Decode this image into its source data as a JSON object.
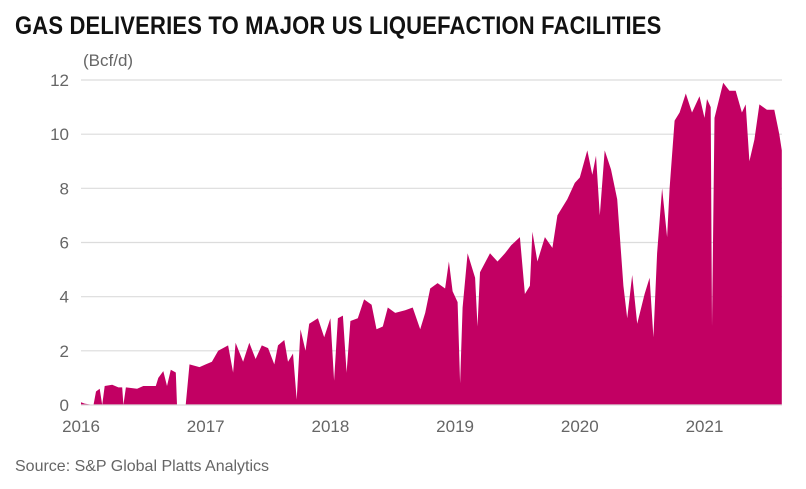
{
  "chart_data": {
    "type": "area",
    "title": "GAS DELIVERIES TO MAJOR US LIQUEFACTION FACILITIES",
    "ylabel": "(Bcf/d)",
    "xlabel": "",
    "source": "Source: S&P Global Platts Analytics",
    "ylim": [
      0,
      12
    ],
    "xlim": [
      2016.0,
      2021.62
    ],
    "yticks": [
      "0",
      "2",
      "4",
      "6",
      "8",
      "10",
      "12"
    ],
    "xticks": [
      "2016",
      "2017",
      "2018",
      "2019",
      "2020",
      "2021"
    ],
    "grid": true,
    "color": "#c20063",
    "series": [
      {
        "name": "Gas deliveries",
        "points": [
          [
            2016.0,
            0.1
          ],
          [
            2016.03,
            0.05
          ],
          [
            2016.1,
            0
          ],
          [
            2016.12,
            0.5
          ],
          [
            2016.15,
            0.6
          ],
          [
            2016.17,
            0
          ],
          [
            2016.19,
            0.7
          ],
          [
            2016.25,
            0.75
          ],
          [
            2016.3,
            0.65
          ],
          [
            2016.33,
            0.65
          ],
          [
            2016.34,
            0
          ],
          [
            2016.36,
            0.65
          ],
          [
            2016.45,
            0.6
          ],
          [
            2016.5,
            0.7
          ],
          [
            2016.6,
            0.7
          ],
          [
            2016.62,
            1.0
          ],
          [
            2016.66,
            1.25
          ],
          [
            2016.69,
            0.7
          ],
          [
            2016.72,
            1.3
          ],
          [
            2016.76,
            1.2
          ],
          [
            2016.77,
            0
          ],
          [
            2016.84,
            0
          ],
          [
            2016.87,
            1.5
          ],
          [
            2016.95,
            1.4
          ],
          [
            2017.0,
            1.5
          ],
          [
            2017.05,
            1.6
          ],
          [
            2017.1,
            2.0
          ],
          [
            2017.18,
            2.2
          ],
          [
            2017.22,
            1.2
          ],
          [
            2017.24,
            2.3
          ],
          [
            2017.3,
            1.6
          ],
          [
            2017.35,
            2.3
          ],
          [
            2017.4,
            1.7
          ],
          [
            2017.45,
            2.2
          ],
          [
            2017.5,
            2.1
          ],
          [
            2017.55,
            1.5
          ],
          [
            2017.58,
            2.2
          ],
          [
            2017.63,
            2.4
          ],
          [
            2017.66,
            1.6
          ],
          [
            2017.7,
            1.9
          ],
          [
            2017.73,
            0.2
          ],
          [
            2017.76,
            2.8
          ],
          [
            2017.8,
            2.0
          ],
          [
            2017.83,
            3.0
          ],
          [
            2017.9,
            3.2
          ],
          [
            2017.95,
            2.5
          ],
          [
            2018.0,
            3.2
          ],
          [
            2018.03,
            0.9
          ],
          [
            2018.06,
            3.2
          ],
          [
            2018.1,
            3.3
          ],
          [
            2018.13,
            1.2
          ],
          [
            2018.16,
            3.1
          ],
          [
            2018.22,
            3.2
          ],
          [
            2018.27,
            3.9
          ],
          [
            2018.33,
            3.7
          ],
          [
            2018.37,
            2.8
          ],
          [
            2018.42,
            2.9
          ],
          [
            2018.46,
            3.6
          ],
          [
            2018.52,
            3.4
          ],
          [
            2018.6,
            3.5
          ],
          [
            2018.66,
            3.6
          ],
          [
            2018.72,
            2.8
          ],
          [
            2018.76,
            3.4
          ],
          [
            2018.8,
            4.3
          ],
          [
            2018.86,
            4.5
          ],
          [
            2018.92,
            4.3
          ],
          [
            2018.95,
            5.3
          ],
          [
            2018.98,
            4.2
          ],
          [
            2019.02,
            3.8
          ],
          [
            2019.04,
            0.8
          ],
          [
            2019.06,
            3.6
          ],
          [
            2019.1,
            5.6
          ],
          [
            2019.16,
            4.7
          ],
          [
            2019.18,
            2.9
          ],
          [
            2019.2,
            4.9
          ],
          [
            2019.28,
            5.6
          ],
          [
            2019.34,
            5.3
          ],
          [
            2019.4,
            5.6
          ],
          [
            2019.45,
            5.9
          ],
          [
            2019.52,
            6.2
          ],
          [
            2019.56,
            4.1
          ],
          [
            2019.6,
            4.4
          ],
          [
            2019.62,
            6.4
          ],
          [
            2019.66,
            5.3
          ],
          [
            2019.72,
            6.2
          ],
          [
            2019.78,
            5.8
          ],
          [
            2019.82,
            7.0
          ],
          [
            2019.9,
            7.6
          ],
          [
            2019.96,
            8.2
          ],
          [
            2020.0,
            8.4
          ],
          [
            2020.06,
            9.4
          ],
          [
            2020.1,
            8.5
          ],
          [
            2020.13,
            9.2
          ],
          [
            2020.16,
            7.0
          ],
          [
            2020.2,
            9.4
          ],
          [
            2020.25,
            8.7
          ],
          [
            2020.3,
            7.6
          ],
          [
            2020.35,
            4.4
          ],
          [
            2020.38,
            3.2
          ],
          [
            2020.42,
            4.8
          ],
          [
            2020.46,
            3.0
          ],
          [
            2020.52,
            4.1
          ],
          [
            2020.56,
            4.7
          ],
          [
            2020.59,
            2.5
          ],
          [
            2020.62,
            5.6
          ],
          [
            2020.66,
            8.0
          ],
          [
            2020.7,
            6.2
          ],
          [
            2020.72,
            8.0
          ],
          [
            2020.76,
            10.5
          ],
          [
            2020.8,
            10.8
          ],
          [
            2020.85,
            11.5
          ],
          [
            2020.9,
            10.8
          ],
          [
            2020.96,
            11.4
          ],
          [
            2021.0,
            10.6
          ],
          [
            2021.02,
            11.3
          ],
          [
            2021.05,
            11.0
          ],
          [
            2021.06,
            2.9
          ],
          [
            2021.08,
            10.6
          ],
          [
            2021.15,
            11.9
          ],
          [
            2021.2,
            11.6
          ],
          [
            2021.25,
            11.6
          ],
          [
            2021.3,
            10.8
          ],
          [
            2021.33,
            11.1
          ],
          [
            2021.36,
            9.0
          ],
          [
            2021.4,
            9.8
          ],
          [
            2021.44,
            11.1
          ],
          [
            2021.5,
            10.9
          ],
          [
            2021.56,
            10.9
          ],
          [
            2021.6,
            10.0
          ],
          [
            2021.62,
            9.4
          ]
        ]
      }
    ]
  }
}
